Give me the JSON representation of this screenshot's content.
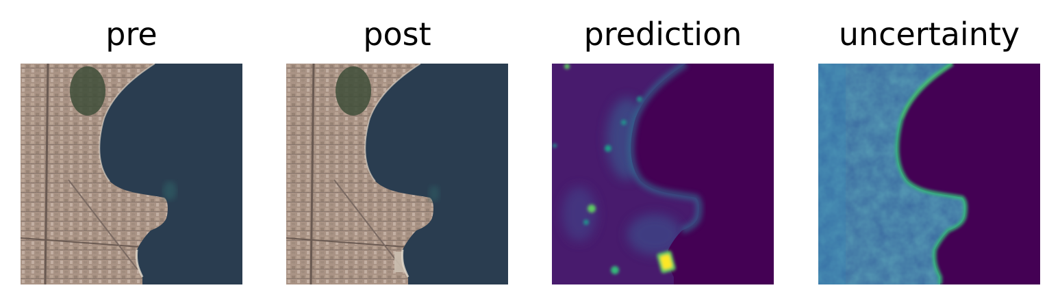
{
  "panels": [
    {
      "title": "pre"
    },
    {
      "title": "post"
    },
    {
      "title": "prediction"
    },
    {
      "title": "uncertainty"
    }
  ],
  "colors": {
    "land_tone": "#a58c7c",
    "sea": "#2a3d50",
    "park_green": "#3e4d38",
    "viridis_low": "#440154",
    "viridis_mid": "#31688e",
    "viridis_teal": "#21918c",
    "viridis_green": "#5ec962",
    "viridis_high": "#fde725"
  }
}
